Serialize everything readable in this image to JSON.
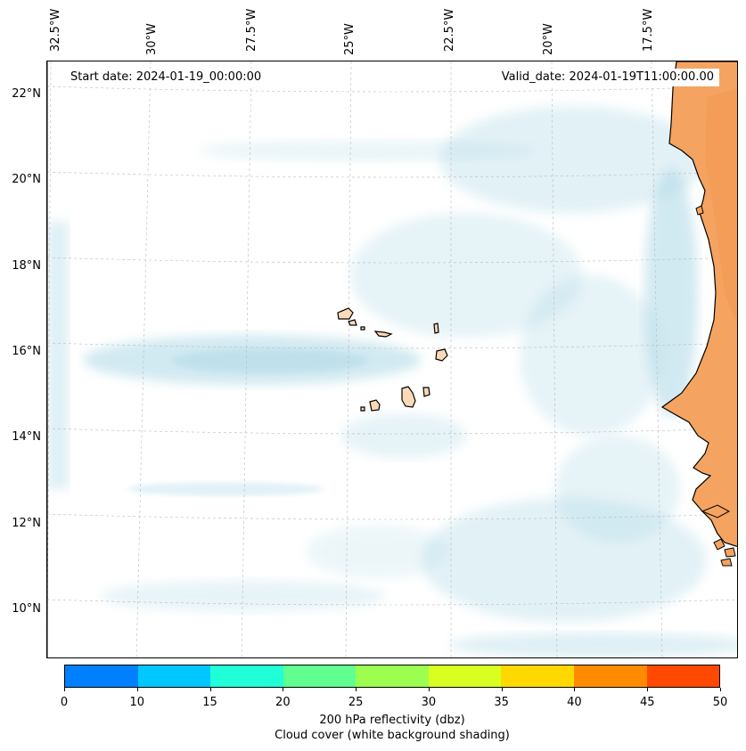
{
  "map": {
    "start_label": "Start date: 2024-01-19_00:00:00",
    "valid_label": "Valid_date: 2024-01-19T11:00:00.00",
    "lon_labels": [
      "32.5°W",
      "30°W",
      "27.5°W",
      "25°W",
      "22.5°W",
      "20°W",
      "17.5°W"
    ],
    "lat_labels": [
      "22°N",
      "20°N",
      "18°N",
      "16°N",
      "14°N",
      "12°N",
      "10°N"
    ]
  },
  "colorbar": {
    "ticks": [
      "0",
      "10",
      "15",
      "20",
      "25",
      "30",
      "35",
      "40",
      "45",
      "50"
    ],
    "colors": [
      "#0080ff",
      "#00c8ff",
      "#20ffd8",
      "#60ff90",
      "#9cff50",
      "#d8ff20",
      "#ffd800",
      "#ff8c00",
      "#ff4800"
    ],
    "label_line1": "200 hPa reflectivity (dbz)",
    "label_line2": "Cloud cover (white background shading)"
  },
  "colors": {
    "cloud": "#add8e6",
    "land": "#f4a460",
    "coast": "#000000"
  }
}
